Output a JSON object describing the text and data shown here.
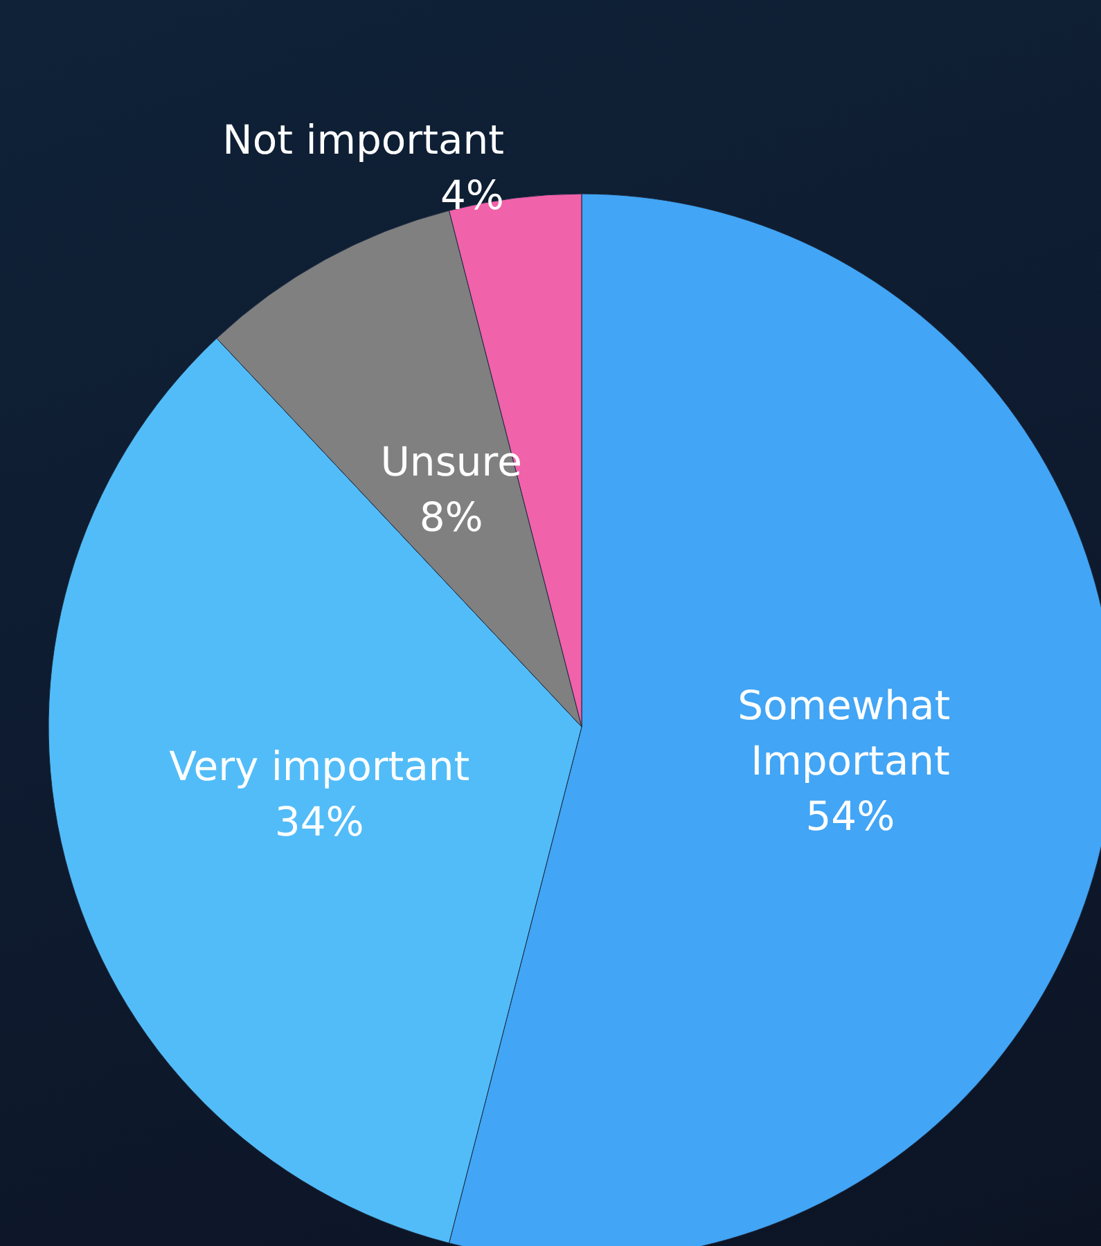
{
  "chart_data": {
    "type": "pie",
    "categories": [
      "Somewhat Important",
      "Very important",
      "Unsure",
      "Not important"
    ],
    "values": [
      54,
      34,
      8,
      4
    ],
    "colors": [
      "#42a5f5",
      "#52bcf8",
      "#808080",
      "#f062aa"
    ],
    "value_labels": [
      "54%",
      "34%",
      "8%",
      "4%"
    ],
    "legend": false
  }
}
